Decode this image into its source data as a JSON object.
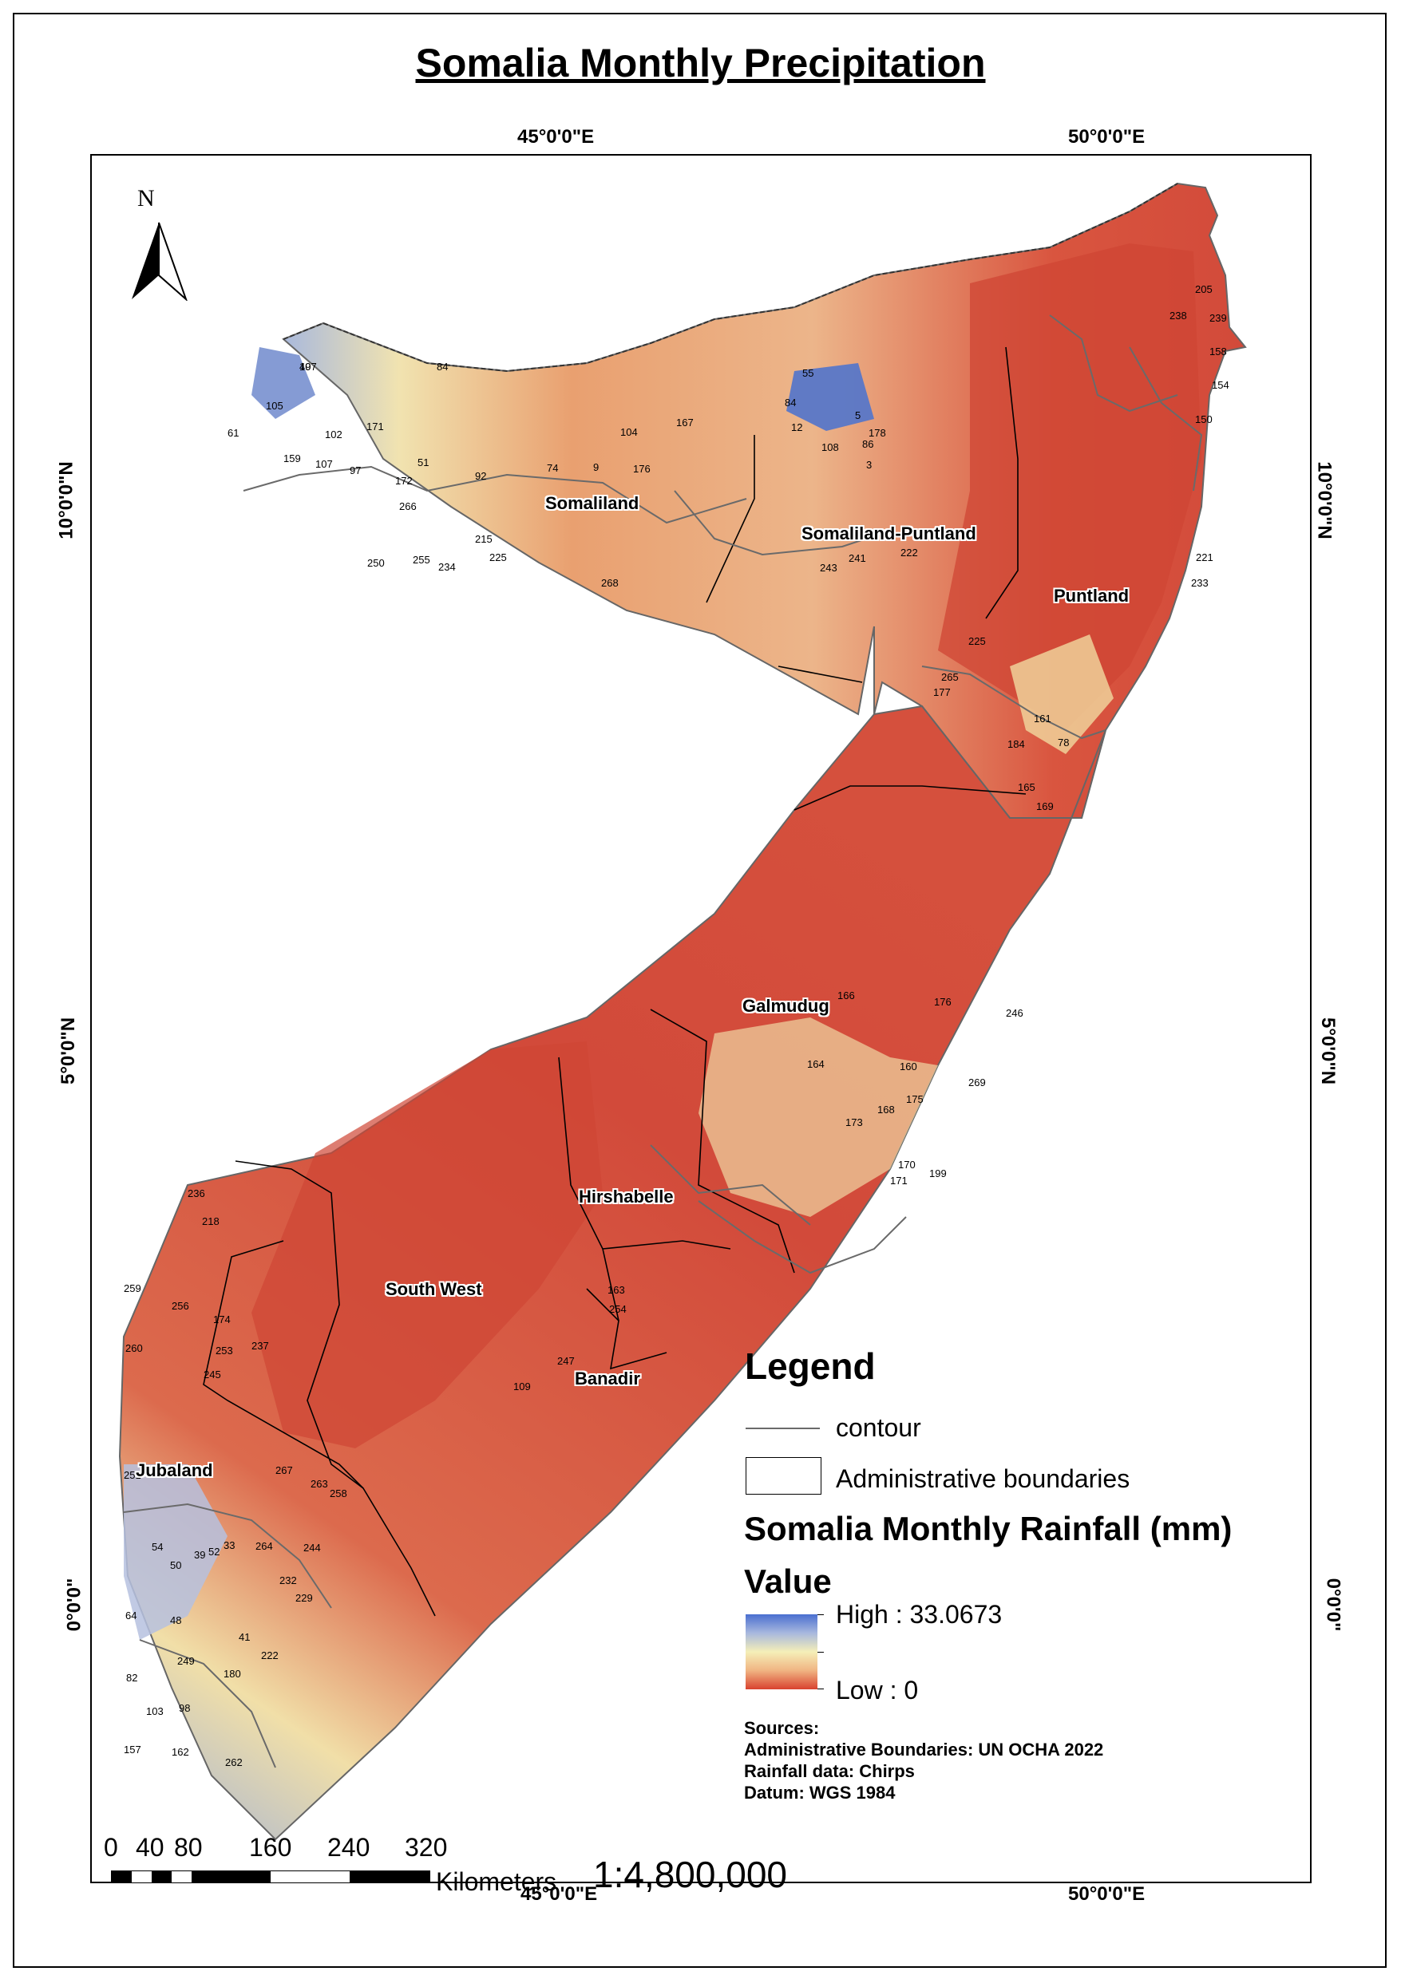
{
  "title": "Somalia Monthly Precipitation",
  "graticule": {
    "lon_labels": [
      "45°0'0\"E",
      "50°0'0\"E"
    ],
    "lat_labels": [
      "10°0'0\"N",
      "5°0'0\"N",
      "0°0'0\""
    ]
  },
  "north_arrow": {
    "label": "N",
    "icon": "north-arrow-icon"
  },
  "regions": [
    "Somaliland",
    "Somaliland-Puntland",
    "Puntland",
    "Galmudug",
    "Hirshabelle",
    "South West",
    "Banadir",
    "Jubaland"
  ],
  "contour_labels": [
    "49",
    "61",
    "105",
    "102",
    "171",
    "159",
    "107",
    "97",
    "172",
    "84",
    "51",
    "92",
    "74",
    "9",
    "176",
    "104",
    "167",
    "84",
    "55",
    "12",
    "5",
    "86",
    "3",
    "108",
    "178",
    "205",
    "238",
    "239",
    "158",
    "154",
    "150",
    "266",
    "255",
    "250",
    "234",
    "225",
    "215",
    "268",
    "243",
    "241",
    "222",
    "221",
    "233",
    "225",
    "265",
    "177",
    "161",
    "184",
    "78",
    "165",
    "169",
    "166",
    "246",
    "269",
    "176",
    "164",
    "160",
    "173",
    "168",
    "175",
    "170",
    "171",
    "199",
    "236",
    "218",
    "259",
    "256",
    "174",
    "253",
    "237",
    "260",
    "245",
    "163",
    "254",
    "247",
    "109",
    "251",
    "267",
    "263",
    "258",
    "54",
    "39",
    "52",
    "33",
    "50",
    "264",
    "244",
    "232",
    "229",
    "64",
    "48",
    "82",
    "103",
    "157",
    "98",
    "162",
    "262",
    "222",
    "180",
    "249",
    "41",
    "107"
  ],
  "legend": {
    "title": "Legend",
    "contour_label": "contour",
    "admin_label": "Administrative boundaries",
    "rainfall_title": "Somalia Monthly Rainfall (mm)",
    "value_label": "Value",
    "high_label": "High : 33.0673",
    "low_label": "Low : 0",
    "colors": {
      "high": "#4a6fd0",
      "mid": "#f5efb8",
      "low": "#d9422f"
    }
  },
  "sources": {
    "heading": "Sources:",
    "admin": "Administrative Boundaries: UN OCHA 2022",
    "rain": "Rainfall data: Chirps",
    "datum": "Datum: WGS 1984"
  },
  "scale": {
    "ticks": [
      "0",
      "40",
      "80",
      "160",
      "240",
      "320"
    ],
    "unit": "Kilometers",
    "ratio": "1:4,800,000"
  },
  "colors": {
    "dry": "#d24a3a",
    "mid": "#e88a5a",
    "wet": "#f3d9a0",
    "wettest": "#6d88c8",
    "boundary": "#000000",
    "contour": "#6a6a6a"
  }
}
